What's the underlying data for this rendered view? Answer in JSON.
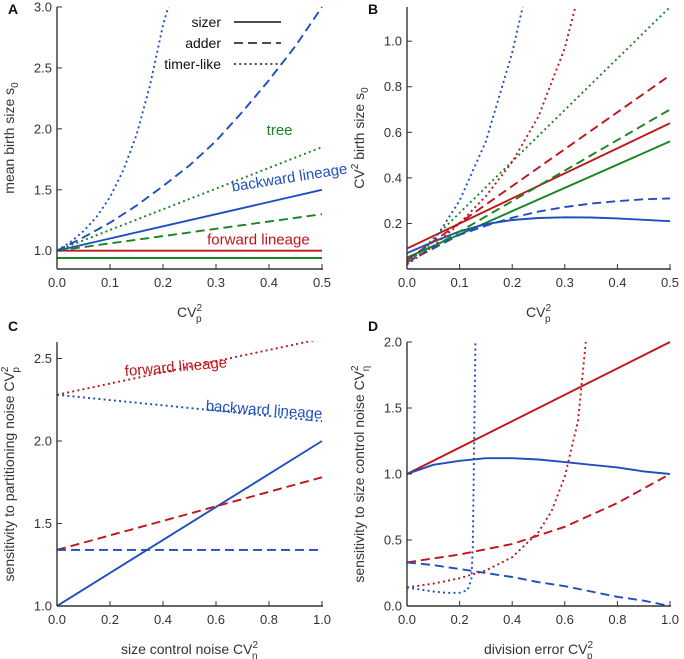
{
  "colors": {
    "sizer_red": "#c0141b",
    "adder_green": "#17861f",
    "timer_blue": "#1f4fbf",
    "axis": "#333333"
  },
  "legend": {
    "entries": [
      {
        "label": "sizer",
        "style": "solid"
      },
      {
        "label": "adder",
        "style": "dashed"
      },
      {
        "label": "timer-like",
        "style": "dotted"
      }
    ]
  },
  "chart_data": [
    {
      "panel": "A",
      "type": "line",
      "xlabel": "CV",
      "xlabel_sup": "2",
      "xlabel_sub": "p",
      "ylabel": "mean birth size s",
      "ylabel_sub": "0",
      "xlim": [
        0,
        0.5
      ],
      "ylim": [
        0.85,
        3.0
      ],
      "xticks": [
        "0.0",
        "0.1",
        "0.2",
        "0.3",
        "0.4",
        "0.5"
      ],
      "xtick_values": [
        0,
        0.1,
        0.2,
        0.3,
        0.4,
        0.5
      ],
      "yticks": [
        "1.0",
        "1.5",
        "2.0",
        "2.5",
        "3.0"
      ],
      "ytick_values": [
        1.0,
        1.5,
        2.0,
        2.5,
        3.0
      ],
      "annotations": [
        {
          "text": "tree",
          "color": "#17861f",
          "x": 0.42,
          "y": 1.95,
          "anchor": "middle"
        },
        {
          "text": "backward lineage",
          "color": "#1f4fbf",
          "x": 0.44,
          "y": 1.56,
          "anchor": "middle",
          "rotate": -9
        },
        {
          "text": "forward lineage",
          "color": "#c0141b",
          "x": 0.38,
          "y": 1.05,
          "anchor": "middle"
        }
      ],
      "series": [
        {
          "name": "forward sizer",
          "color": "#c0141b",
          "dash": "solid",
          "x": [
            0,
            0.5
          ],
          "y": [
            1.0,
            1.0
          ]
        },
        {
          "name": "forward adder",
          "color": "#17861f",
          "dash": "solid",
          "x": [
            0,
            0.5
          ],
          "y": [
            0.94,
            0.94
          ]
        },
        {
          "name": "backward sizer",
          "color": "#1f4fbf",
          "dash": "solid",
          "x": [
            0,
            0.1,
            0.2,
            0.3,
            0.4,
            0.5
          ],
          "y": [
            1.0,
            1.1,
            1.2,
            1.3,
            1.4,
            1.5
          ]
        },
        {
          "name": "backward adder",
          "color": "#17861f",
          "dash": "dashed",
          "x": [
            0,
            0.1,
            0.2,
            0.3,
            0.4,
            0.5
          ],
          "y": [
            1.0,
            1.06,
            1.12,
            1.18,
            1.24,
            1.3
          ]
        },
        {
          "name": "tree adder",
          "color": "#17861f",
          "dash": "dotted",
          "x": [
            0,
            0.1,
            0.2,
            0.3,
            0.4,
            0.5
          ],
          "y": [
            1.0,
            1.17,
            1.34,
            1.51,
            1.68,
            1.85
          ]
        },
        {
          "name": "timer-like adder",
          "color": "#1f4fbf",
          "dash": "dashed",
          "x": [
            0,
            0.05,
            0.1,
            0.15,
            0.2,
            0.25,
            0.3,
            0.35,
            0.4,
            0.45,
            0.5
          ],
          "y": [
            1.0,
            1.11,
            1.23,
            1.37,
            1.53,
            1.7,
            1.9,
            2.14,
            2.4,
            2.68,
            3.0
          ]
        },
        {
          "name": "timer-like dotted",
          "color": "#1f4fbf",
          "dash": "dotted",
          "x": [
            0,
            0.025,
            0.05,
            0.075,
            0.1,
            0.125,
            0.15,
            0.175,
            0.2,
            0.21
          ],
          "y": [
            1.0,
            1.07,
            1.16,
            1.28,
            1.44,
            1.66,
            1.95,
            2.35,
            2.85,
            3.0
          ]
        }
      ]
    },
    {
      "panel": "B",
      "type": "line",
      "xlabel": "CV",
      "xlabel_sup": "2",
      "xlabel_sub": "p",
      "ylabel": "CV",
      "ylabel_sup": "2",
      "ylabel_rest": " birth size s",
      "ylabel_sub": "0",
      "xlim": [
        0,
        0.5
      ],
      "ylim": [
        0,
        1.15
      ],
      "xticks": [
        "0.0",
        "0.1",
        "0.2",
        "0.3",
        "0.4",
        "0.5"
      ],
      "xtick_values": [
        0,
        0.1,
        0.2,
        0.3,
        0.4,
        0.5
      ],
      "yticks": [
        "0.2",
        "0.4",
        "0.6",
        "0.8",
        "1.0"
      ],
      "ytick_values": [
        0.2,
        0.4,
        0.6,
        0.8,
        1.0
      ],
      "series": [
        {
          "name": "red solid",
          "color": "#c0141b",
          "dash": "solid",
          "x": [
            0,
            0.5
          ],
          "y": [
            0.09,
            0.64
          ]
        },
        {
          "name": "green solid",
          "color": "#17861f",
          "dash": "solid",
          "x": [
            0,
            0.5
          ],
          "y": [
            0.05,
            0.56
          ]
        },
        {
          "name": "blue solid",
          "color": "#1f4fbf",
          "dash": "solid",
          "x": [
            0,
            0.05,
            0.1,
            0.15,
            0.2,
            0.25,
            0.3,
            0.35,
            0.4,
            0.45,
            0.5
          ],
          "y": [
            0.07,
            0.12,
            0.165,
            0.197,
            0.215,
            0.224,
            0.227,
            0.226,
            0.222,
            0.216,
            0.21
          ]
        },
        {
          "name": "red dashed",
          "color": "#c0141b",
          "dash": "dashed",
          "x": [
            0,
            0.5
          ],
          "y": [
            0.04,
            0.85
          ]
        },
        {
          "name": "green dashed",
          "color": "#17861f",
          "dash": "dashed",
          "x": [
            0,
            0.5
          ],
          "y": [
            0.03,
            0.7
          ]
        },
        {
          "name": "blue dashed",
          "color": "#1f4fbf",
          "dash": "dashed",
          "x": [
            0,
            0.05,
            0.1,
            0.15,
            0.2,
            0.25,
            0.3,
            0.35,
            0.4,
            0.45,
            0.5
          ],
          "y": [
            0.03,
            0.09,
            0.15,
            0.19,
            0.225,
            0.252,
            0.272,
            0.287,
            0.298,
            0.306,
            0.31
          ]
        },
        {
          "name": "green dotted",
          "color": "#17861f",
          "dash": "dotted",
          "x": [
            0,
            0.5
          ],
          "y": [
            0.02,
            1.15
          ]
        },
        {
          "name": "red dotted",
          "color": "#c0141b",
          "dash": "dotted",
          "x": [
            0,
            0.05,
            0.1,
            0.15,
            0.2,
            0.25,
            0.3,
            0.32
          ],
          "y": [
            0.02,
            0.1,
            0.2,
            0.32,
            0.47,
            0.67,
            0.97,
            1.15
          ]
        },
        {
          "name": "blue dotted",
          "color": "#1f4fbf",
          "dash": "dotted",
          "x": [
            0,
            0.05,
            0.1,
            0.15,
            0.2,
            0.22
          ],
          "y": [
            0.03,
            0.12,
            0.3,
            0.56,
            0.95,
            1.15
          ]
        }
      ]
    },
    {
      "panel": "C",
      "type": "line",
      "xlabel": "size control noise CV",
      "xlabel_sup": "2",
      "xlabel_sub": "η",
      "ylabel": "sensitivity to partitioning noise CV",
      "ylabel_sup": "2",
      "ylabel_sub": "p",
      "xlim": [
        0,
        1.0
      ],
      "ylim": [
        1.0,
        2.6
      ],
      "xticks": [
        "0.0",
        "0.2",
        "0.4",
        "0.6",
        "0.8",
        "1.0"
      ],
      "xtick_values": [
        0,
        0.2,
        0.4,
        0.6,
        0.8,
        1.0
      ],
      "yticks": [
        "1.0",
        "1.5",
        "2.0",
        "2.5"
      ],
      "ytick_values": [
        1.0,
        1.5,
        2.0,
        2.5
      ],
      "annotations": [
        {
          "text": "forward lineage",
          "color": "#c0141b",
          "x": 0.45,
          "y": 2.42,
          "anchor": "middle",
          "rotate": -5
        },
        {
          "text": "backward lineage",
          "color": "#1f4fbf",
          "x": 0.78,
          "y": 2.16,
          "anchor": "middle",
          "rotate": 4
        }
      ],
      "series": [
        {
          "name": "blue solid",
          "color": "#1f4fbf",
          "dash": "solid",
          "x": [
            0,
            1
          ],
          "y": [
            1.0,
            2.0
          ]
        },
        {
          "name": "red dashed",
          "color": "#c0141b",
          "dash": "dashed",
          "x": [
            0,
            1
          ],
          "y": [
            1.34,
            1.78
          ]
        },
        {
          "name": "blue dashed",
          "color": "#1f4fbf",
          "dash": "dashed",
          "x": [
            0,
            1
          ],
          "y": [
            1.34,
            1.34
          ]
        },
        {
          "name": "red dotted",
          "color": "#c0141b",
          "dash": "dotted",
          "x": [
            0,
            1
          ],
          "y": [
            2.28,
            2.62
          ]
        },
        {
          "name": "blue dotted",
          "color": "#1f4fbf",
          "dash": "dotted",
          "x": [
            0,
            1
          ],
          "y": [
            2.28,
            2.12
          ]
        }
      ]
    },
    {
      "panel": "D",
      "type": "line",
      "xlabel": "division error CV",
      "xlabel_sup": "2",
      "xlabel_sub": "p",
      "ylabel": "sensitivity to size control noise CV",
      "ylabel_sup": "2",
      "ylabel_sub": "η",
      "xlim": [
        0,
        1.0
      ],
      "ylim": [
        0,
        2.0
      ],
      "xticks": [
        "0.0",
        "0.2",
        "0.4",
        "0.6",
        "0.8",
        "1.0"
      ],
      "xtick_values": [
        0,
        0.2,
        0.4,
        0.6,
        0.8,
        1.0
      ],
      "yticks": [
        "0.0",
        "0.5",
        "1.0",
        "1.5",
        "2.0"
      ],
      "ytick_values": [
        0,
        0.5,
        1.0,
        1.5,
        2.0
      ],
      "series": [
        {
          "name": "red solid",
          "color": "#c0141b",
          "dash": "solid",
          "x": [
            0,
            1
          ],
          "y": [
            1.0,
            2.0
          ]
        },
        {
          "name": "blue solid",
          "color": "#1f4fbf",
          "dash": "solid",
          "x": [
            0,
            0.1,
            0.2,
            0.3,
            0.4,
            0.5,
            0.6,
            0.7,
            0.8,
            0.9,
            1.0
          ],
          "y": [
            1.0,
            1.07,
            1.1,
            1.12,
            1.12,
            1.11,
            1.09,
            1.07,
            1.05,
            1.02,
            1.0
          ]
        },
        {
          "name": "red dashed",
          "color": "#c0141b",
          "dash": "dashed",
          "x": [
            0,
            0.2,
            0.4,
            0.6,
            0.8,
            1.0
          ],
          "y": [
            0.33,
            0.39,
            0.47,
            0.6,
            0.78,
            1.0
          ]
        },
        {
          "name": "blue dashed",
          "color": "#1f4fbf",
          "dash": "dashed",
          "x": [
            0,
            0.1,
            0.2,
            0.3,
            0.4,
            0.5,
            0.6,
            0.7,
            0.8,
            0.9,
            1.0
          ],
          "y": [
            0.33,
            0.31,
            0.28,
            0.25,
            0.22,
            0.18,
            0.15,
            0.11,
            0.07,
            0.04,
            0.0
          ]
        },
        {
          "name": "red dotted",
          "color": "#c0141b",
          "dash": "dotted",
          "x": [
            0,
            0.1,
            0.2,
            0.3,
            0.4,
            0.5,
            0.55,
            0.6,
            0.65,
            0.68
          ],
          "y": [
            0.14,
            0.17,
            0.21,
            0.27,
            0.37,
            0.56,
            0.72,
            0.98,
            1.4,
            2.0
          ]
        },
        {
          "name": "blue dotted",
          "color": "#1f4fbf",
          "dash": "dotted",
          "x": [
            0,
            0.05,
            0.1,
            0.15,
            0.2,
            0.23,
            0.245,
            0.25,
            0.255,
            0.26
          ],
          "y": [
            0.14,
            0.125,
            0.11,
            0.1,
            0.1,
            0.12,
            0.2,
            0.45,
            1.2,
            2.0
          ]
        }
      ]
    }
  ]
}
